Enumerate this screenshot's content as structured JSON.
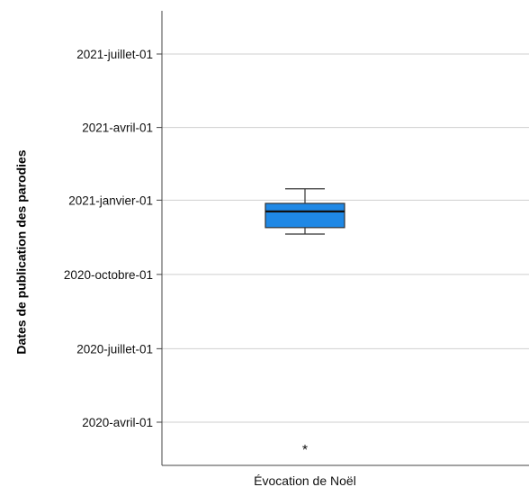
{
  "chart_data": {
    "type": "box",
    "ylabel": "Dates de publication des parodies",
    "categories": [
      "Évocation de Noël"
    ],
    "yticks": [
      {
        "value": "2020-04-01",
        "label": "2020-avril-01"
      },
      {
        "value": "2020-07-01",
        "label": "2020-juillet-01"
      },
      {
        "value": "2020-10-01",
        "label": "2020-octobre-01"
      },
      {
        "value": "2021-01-01",
        "label": "2021-janvier-01"
      },
      {
        "value": "2021-04-01",
        "label": "2021-avril-01"
      },
      {
        "value": "2021-07-01",
        "label": "2021-juillet-01"
      }
    ],
    "ylim": [
      "2020-03-01",
      "2021-09-15"
    ],
    "series": [
      {
        "category": "Évocation de Noël",
        "whisker_low": "2020-11-20",
        "q1": "2020-11-28",
        "median": "2020-12-18",
        "q3": "2020-12-28",
        "whisker_high": "2021-01-15",
        "outliers": [
          "2020-03-05"
        ],
        "outlier_symbol": "*"
      }
    ],
    "grid": true,
    "box_color": "#1f88e5"
  }
}
